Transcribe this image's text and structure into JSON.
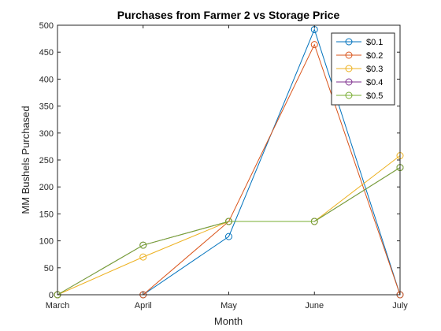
{
  "chart_data": {
    "type": "line",
    "title": "Purchases from Farmer 2 vs Storage Price",
    "xlabel": "Month",
    "ylabel": "MM Bushels Purchased",
    "categories": [
      "March",
      "April",
      "May",
      "June",
      "July"
    ],
    "ylim": [
      0,
      500
    ],
    "yticks": [
      0,
      50,
      100,
      150,
      200,
      250,
      300,
      350,
      400,
      450,
      500
    ],
    "legend_position": "top-right",
    "grid": false,
    "marker": "circle",
    "series": [
      {
        "name": "$0.1",
        "color": "#0072BD",
        "values": [
          0,
          0,
          108,
          492,
          0
        ]
      },
      {
        "name": "$0.2",
        "color": "#D95319",
        "values": [
          0,
          0,
          136,
          464,
          0
        ]
      },
      {
        "name": "$0.3",
        "color": "#EDB120",
        "values": [
          0,
          70,
          136,
          136,
          258
        ]
      },
      {
        "name": "$0.4",
        "color": "#7E2F8E",
        "values": [
          0,
          92,
          136,
          136,
          236
        ]
      },
      {
        "name": "$0.5",
        "color": "#77AC30",
        "values": [
          0,
          92,
          136,
          136,
          236
        ]
      }
    ]
  }
}
